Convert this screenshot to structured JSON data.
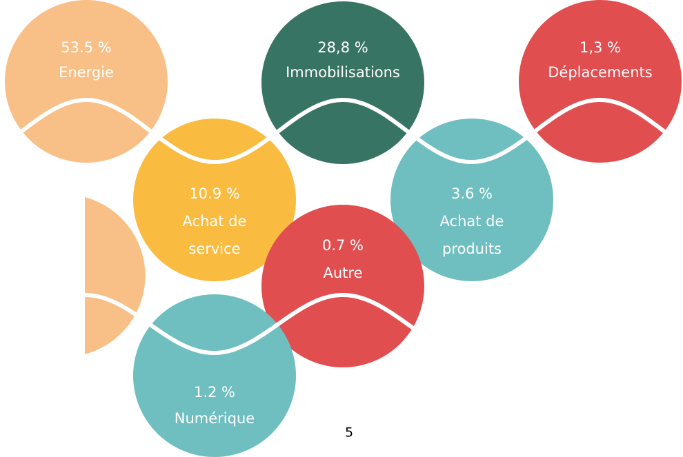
{
  "nodes": [
    {
      "value": "53.5 %",
      "label": "Energie"
    },
    {
      "value": "28,8 %",
      "label": "Immobilisations"
    },
    {
      "value": "1,3 %",
      "label": "Déplacements"
    },
    {
      "value": "10.9 %",
      "label": "Achat de service"
    },
    {
      "value": "3.6 %",
      "label": "Achat de produits"
    },
    {
      "value": "0.7 %",
      "label": "Autre"
    },
    {
      "value": "1.2 %",
      "label": "Numérique"
    }
  ],
  "page_number": "5"
}
